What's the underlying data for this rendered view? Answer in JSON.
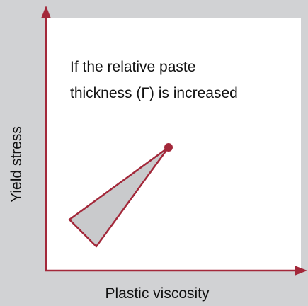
{
  "annotation": [
    "If the relative paste",
    "thickness (Γ) is increased"
  ],
  "y_label": "Yield stress",
  "x_label": "Plastic viscosity"
}
